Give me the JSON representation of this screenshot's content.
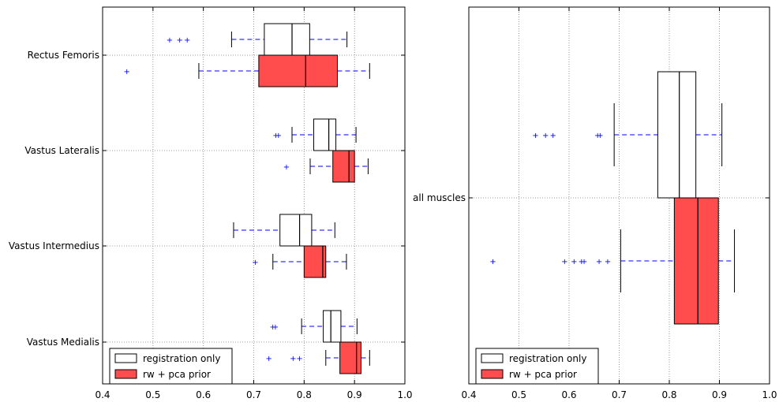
{
  "chart_data": [
    {
      "type": "boxplot",
      "orientation": "horizontal",
      "xlim": [
        0.4,
        1.0
      ],
      "xticks": [
        "0.4",
        "0.5",
        "0.6",
        "0.7",
        "0.8",
        "0.9",
        "1.0"
      ],
      "grid": true,
      "legend_position": "lower-left",
      "categories": [
        "Rectus Femoris",
        "Vastus Lateralis",
        "Vastus Intermedius",
        "Vastus Medialis"
      ],
      "series": [
        {
          "name": "registration only",
          "color": "#ffffff",
          "boxes": [
            {
              "category": "Rectus Femoris",
              "whisker_low": 0.656,
              "q1": 0.721,
              "median": 0.776,
              "q3": 0.811,
              "whisker_high": 0.885,
              "outliers": [
                0.533,
                0.553,
                0.568
              ]
            },
            {
              "category": "Vastus Lateralis",
              "whisker_low": 0.776,
              "q1": 0.819,
              "median": 0.849,
              "q3": 0.863,
              "whisker_high": 0.903,
              "outliers": [
                0.744,
                0.749
              ]
            },
            {
              "category": "Vastus Intermedius",
              "whisker_low": 0.66,
              "q1": 0.752,
              "median": 0.791,
              "q3": 0.815,
              "whisker_high": 0.861,
              "outliers": []
            },
            {
              "category": "Vastus Medialis",
              "whisker_low": 0.795,
              "q1": 0.838,
              "median": 0.853,
              "q3": 0.873,
              "whisker_high": 0.905,
              "outliers": [
                0.738,
                0.743
              ]
            }
          ]
        },
        {
          "name": "rw + pca prior",
          "color": "#ff4c4c",
          "boxes": [
            {
              "category": "Rectus Femoris",
              "whisker_low": 0.591,
              "q1": 0.71,
              "median": 0.803,
              "q3": 0.866,
              "whisker_high": 0.93,
              "outliers": [
                0.448
              ]
            },
            {
              "category": "Vastus Lateralis",
              "whisker_low": 0.812,
              "q1": 0.857,
              "median": 0.889,
              "q3": 0.9,
              "whisker_high": 0.927,
              "outliers": [
                0.765
              ]
            },
            {
              "category": "Vastus Intermedius",
              "whisker_low": 0.738,
              "q1": 0.8,
              "median": 0.837,
              "q3": 0.843,
              "whisker_high": 0.884,
              "outliers": [
                0.703
              ]
            },
            {
              "category": "Vastus Medialis",
              "whisker_low": 0.843,
              "q1": 0.871,
              "median": 0.904,
              "q3": 0.913,
              "whisker_high": 0.93,
              "outliers": [
                0.73,
                0.778,
                0.791
              ]
            }
          ]
        }
      ]
    },
    {
      "type": "boxplot",
      "orientation": "horizontal",
      "xlim": [
        0.4,
        1.0
      ],
      "xticks": [
        "0.4",
        "0.5",
        "0.6",
        "0.7",
        "0.8",
        "0.9",
        "1.0"
      ],
      "grid": true,
      "legend_position": "lower-left",
      "categories": [
        "all muscles"
      ],
      "series": [
        {
          "name": "registration only",
          "color": "#ffffff",
          "boxes": [
            {
              "category": "all muscles",
              "whisker_low": 0.69,
              "q1": 0.777,
              "median": 0.82,
              "q3": 0.853,
              "whisker_high": 0.905,
              "outliers": [
                0.533,
                0.553,
                0.568,
                0.657,
                0.662
              ]
            }
          ]
        },
        {
          "name": "rw + pca prior",
          "color": "#ff4c4c",
          "boxes": [
            {
              "category": "all muscles",
              "whisker_low": 0.703,
              "q1": 0.81,
              "median": 0.857,
              "q3": 0.898,
              "whisker_high": 0.93,
              "outliers": [
                0.448,
                0.591,
                0.61,
                0.625,
                0.63,
                0.66,
                0.677
              ]
            }
          ]
        }
      ]
    }
  ]
}
